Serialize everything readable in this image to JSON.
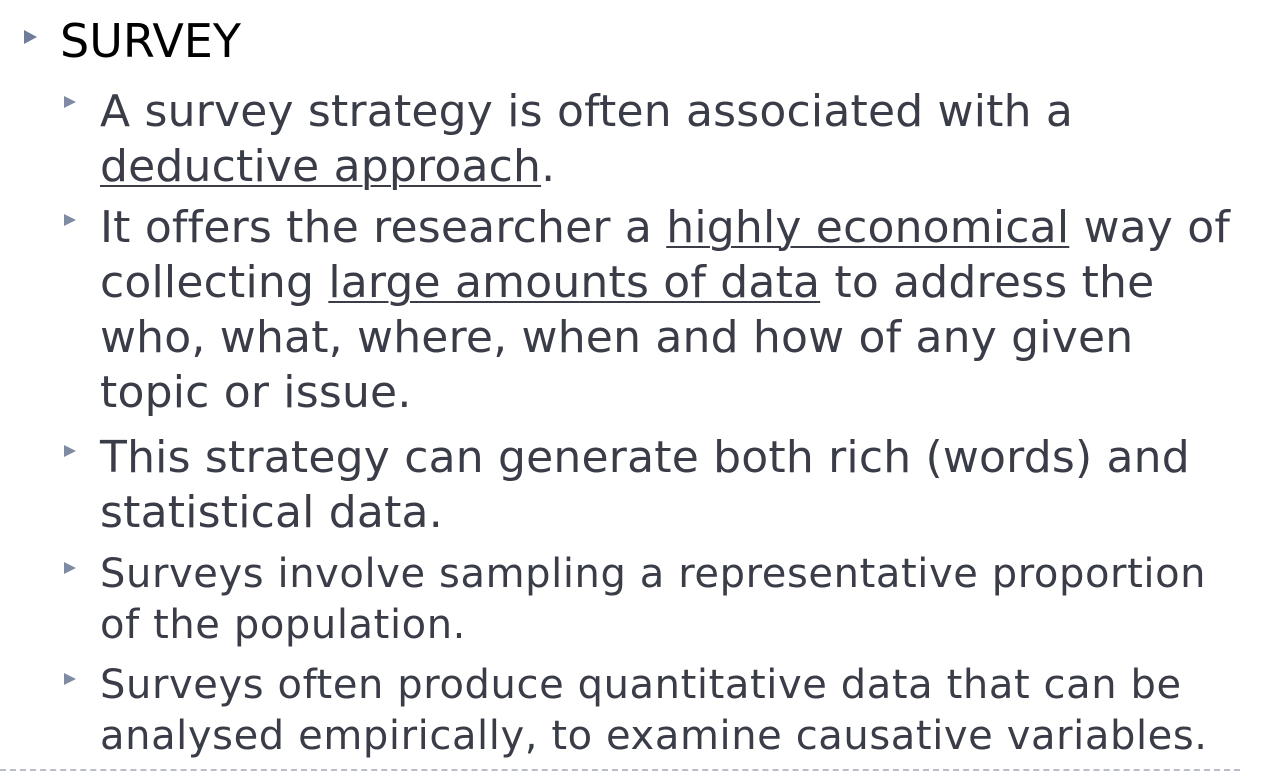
{
  "slide": {
    "title": "SURVEY",
    "items": [
      {
        "lines": [
          [
            {
              "t": "A survey strategy is often associated with a",
              "u": false
            }
          ],
          [
            {
              "t": "deductive approach",
              "u": true
            },
            {
              "t": ".",
              "u": false
            }
          ]
        ]
      },
      {
        "lines": [
          [
            {
              "t": "It offers the researcher a ",
              "u": false
            },
            {
              "t": "highly economical",
              "u": true
            },
            {
              "t": " way of",
              "u": false
            }
          ],
          [
            {
              "t": "collecting ",
              "u": false
            },
            {
              "t": "large amounts of data",
              "u": true
            },
            {
              "t": " to address the",
              "u": false
            }
          ],
          [
            {
              "t": "who, what, where, when and how of any given",
              "u": false
            }
          ],
          [
            {
              "t": "topic or issue.",
              "u": false
            }
          ]
        ]
      },
      {
        "lines": [
          [
            {
              "t": "This strategy can generate both rich (words) and",
              "u": false
            }
          ],
          [
            {
              "t": "statistical data.",
              "u": false
            }
          ]
        ]
      },
      {
        "lines": [
          [
            {
              "t": "Surveys involve sampling a representative proportion",
              "u": false
            }
          ],
          [
            {
              "t": "of the population.",
              "u": false
            }
          ]
        ]
      },
      {
        "lines": [
          [
            {
              "t": "Surveys often produce quantitative data that can be",
              "u": false
            }
          ],
          [
            {
              "t": "analysed empirically, to examine causative variables.",
              "u": false
            }
          ]
        ]
      }
    ]
  },
  "colors": {
    "title_text": "#000000",
    "body_text": "#3a3d48",
    "bullet": "#7f8aa3",
    "divider": "#b8bccb"
  },
  "icons": {
    "bullet": "triangle-bullet-icon"
  }
}
